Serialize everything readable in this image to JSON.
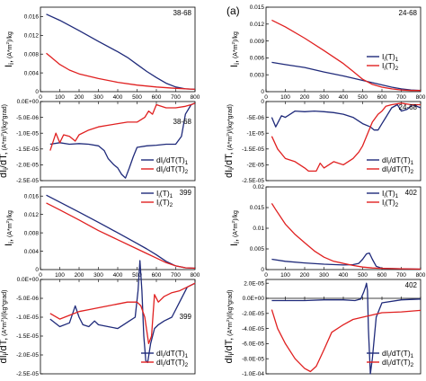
{
  "panel_label": "(a)",
  "colors": {
    "series1": "#1f2a7a",
    "series2": "#e02020",
    "axis": "#000000",
    "grid": "#bbbbbb"
  },
  "chart_data": [
    {
      "id": "p1",
      "type": "line",
      "sample": "38-68",
      "ylabel": "Ii, (A*m²)/kg",
      "ylim": [
        0,
        0.018
      ],
      "yticks": [
        "0",
        "0.004",
        "0.008",
        "0.012",
        "0.016"
      ],
      "ytick_values": [
        0,
        0.004,
        0.008,
        0.012,
        0.016
      ],
      "xlim": [
        0,
        800
      ],
      "xticks": [
        "0",
        "100",
        "200",
        "300",
        "400",
        "500",
        "600",
        "700",
        "800"
      ],
      "legend": [
        "Ii(T)1",
        "Ii(T)2"
      ],
      "legend_pos": "none",
      "series": [
        {
          "x": [
            30,
            100,
            200,
            300,
            400,
            450,
            500,
            550,
            600,
            650,
            700,
            750,
            800
          ],
          "y": [
            0.0165,
            0.0152,
            0.013,
            0.0107,
            0.0085,
            0.0073,
            0.0058,
            0.0043,
            0.003,
            0.0018,
            0.001,
            0.0006,
            0.0005
          ]
        },
        {
          "x": [
            30,
            50,
            100,
            150,
            200,
            300,
            400,
            500,
            600,
            700,
            800
          ],
          "y": [
            0.0082,
            0.0075,
            0.0058,
            0.0046,
            0.0038,
            0.0028,
            0.002,
            0.0014,
            0.001,
            0.0007,
            0.0005
          ]
        }
      ]
    },
    {
      "id": "p2",
      "type": "line",
      "sample": "38-68",
      "ylabel": "dIi/dT, (A*m²)/(kg*grad)",
      "ylim": [
        -2.5e-05,
        0
      ],
      "yticks": [
        "0.0E+00",
        "-5.0E-06",
        "-1.0E-05",
        "-1.5E-05",
        "-2.0E-05",
        "-2.5E-05"
      ],
      "ytick_values": [
        0,
        -5e-06,
        -1e-05,
        -1.5e-05,
        -2e-05,
        -2.5e-05
      ],
      "xlim": [
        0,
        800
      ],
      "xticks": [],
      "legend": [
        "dIi/dT(T)1",
        "dIi/dT(T)2"
      ],
      "legend_pos": "bottom-right",
      "series": [
        {
          "x": [
            50,
            100,
            150,
            200,
            250,
            300,
            330,
            350,
            380,
            400,
            420,
            440,
            460,
            480,
            500,
            550,
            600,
            650,
            700,
            730,
            750,
            780,
            800
          ],
          "y": [
            -1.35e-05,
            -1.3e-05,
            -1.35e-05,
            -1.33e-05,
            -1.35e-05,
            -1.4e-05,
            -1.55e-05,
            -1.8e-05,
            -2e-05,
            -2.1e-05,
            -2.3e-05,
            -2.42e-05,
            -2.1e-05,
            -1.75e-05,
            -1.45e-05,
            -1.4e-05,
            -1.38e-05,
            -1.35e-05,
            -1.35e-05,
            -1.1e-05,
            -4e-06,
            -1e-06,
            -5e-07
          ]
        },
        {
          "x": [
            50,
            80,
            100,
            120,
            150,
            180,
            200,
            250,
            300,
            350,
            400,
            450,
            500,
            540,
            560,
            580,
            600,
            650,
            700,
            750,
            780,
            800
          ],
          "y": [
            -1.55e-05,
            -1e-05,
            -1.3e-05,
            -1.05e-05,
            -1.1e-05,
            -1.25e-05,
            -1.05e-05,
            -9e-06,
            -8e-06,
            -7.5e-06,
            -7e-06,
            -6.5e-06,
            -6.5e-06,
            -5e-06,
            -3e-06,
            -4e-06,
            -1e-06,
            -2e-06,
            -2e-06,
            -1.5e-06,
            -1e-06,
            -5e-07
          ]
        }
      ]
    },
    {
      "id": "p3",
      "type": "line",
      "sample": "399",
      "ylabel": "Ii, (A*m²)/kg",
      "ylim": [
        0,
        0.018
      ],
      "yticks": [
        "0",
        "0.004",
        "0.008",
        "0.012",
        "0.016"
      ],
      "ytick_values": [
        0,
        0.004,
        0.008,
        0.012,
        0.016
      ],
      "xlim": [
        0,
        800
      ],
      "xticks": [
        "0",
        "100",
        "200",
        "300",
        "400",
        "500",
        "600",
        "700",
        "800"
      ],
      "legend": [
        "Ii(T)1",
        "Ii(T)2"
      ],
      "legend_pos": "top-right",
      "series": [
        {
          "x": [
            30,
            100,
            200,
            300,
            400,
            500,
            550,
            600,
            650,
            700,
            750,
            800
          ],
          "y": [
            0.0162,
            0.0147,
            0.0125,
            0.0103,
            0.008,
            0.0057,
            0.0045,
            0.0032,
            0.0018,
            0.0008,
            0.0004,
            0.0003
          ]
        },
        {
          "x": [
            30,
            100,
            200,
            300,
            400,
            500,
            550,
            600,
            650,
            700,
            750,
            800
          ],
          "y": [
            0.0145,
            0.013,
            0.0108,
            0.0085,
            0.0065,
            0.0045,
            0.0035,
            0.0025,
            0.0015,
            0.0008,
            0.0004,
            0.0003
          ]
        }
      ]
    },
    {
      "id": "p4",
      "type": "line",
      "sample": "399",
      "ylabel": "dIi/dT, (A*m²)/(kg*grad)",
      "ylim": [
        -2.5e-05,
        0
      ],
      "yticks": [
        "0.0E+00",
        "-5.0E-06",
        "-1.0E-05",
        "-1.5E-05",
        "-2.0E-05",
        "-2.5E-05"
      ],
      "ytick_values": [
        0,
        -5e-06,
        -1e-05,
        -1.5e-05,
        -2e-05,
        -2.5e-05
      ],
      "xlim": [
        0,
        800
      ],
      "xticks": [],
      "legend": [
        "dIi/dT(T)1",
        "dIi/dT(T)2"
      ],
      "legend_pos": "bottom-right",
      "series": [
        {
          "x": [
            50,
            100,
            150,
            180,
            200,
            220,
            250,
            280,
            300,
            350,
            400,
            430,
            460,
            490,
            505,
            515,
            525,
            535,
            545,
            555,
            570,
            590,
            610,
            640,
            680,
            720,
            760,
            800
          ],
          "y": [
            -1.05e-05,
            -1.25e-05,
            -1.15e-05,
            -7e-06,
            -1e-05,
            -1.2e-05,
            -1.25e-05,
            -1.1e-05,
            -1.2e-05,
            -1.25e-05,
            -1.3e-05,
            -1.2e-05,
            -1.1e-05,
            -1e-05,
            -3e-06,
            5e-06,
            -3e-06,
            -1.5e-05,
            -2.15e-05,
            -2.2e-05,
            -1.7e-05,
            -1.3e-05,
            -1.2e-05,
            -1.1e-05,
            -1e-05,
            -6e-06,
            -2e-06,
            -1e-06
          ]
        },
        {
          "x": [
            50,
            100,
            150,
            200,
            250,
            300,
            350,
            400,
            450,
            500,
            520,
            540,
            560,
            575,
            590,
            610,
            640,
            680,
            720,
            760,
            800
          ],
          "y": [
            -9e-06,
            -1.05e-05,
            -9.5e-06,
            -8.5e-06,
            -8e-06,
            -7.5e-06,
            -7e-06,
            -6.5e-06,
            -6e-06,
            -6e-06,
            -7e-06,
            -1e-05,
            -1.7e-05,
            -1.5e-05,
            -4e-06,
            -6e-06,
            -4.5e-06,
            -3.5e-06,
            -3e-06,
            -2e-06,
            -1e-06
          ]
        }
      ]
    },
    {
      "id": "p5",
      "type": "line",
      "sample": "24-68",
      "ylabel": "Ii, (A*m²)/kg",
      "ylim": [
        0,
        0.015
      ],
      "yticks": [
        "0",
        "0.003",
        "0.006",
        "0.009",
        "0.012",
        "0.015"
      ],
      "ytick_values": [
        0,
        0.003,
        0.006,
        0.009,
        0.012,
        0.015
      ],
      "xlim": [
        0,
        800
      ],
      "xticks": [
        "0",
        "100",
        "200",
        "300",
        "400",
        "500",
        "600",
        "700",
        "800"
      ],
      "legend": [
        "Ii(T)1",
        "Ii(T)2"
      ],
      "legend_pos": "bottom-right",
      "series": [
        {
          "x": [
            30,
            100,
            200,
            300,
            400,
            500,
            550,
            600,
            650,
            700,
            750,
            800
          ],
          "y": [
            0.0052,
            0.0048,
            0.0043,
            0.0035,
            0.0028,
            0.002,
            0.0016,
            0.0012,
            0.0008,
            0.0005,
            0.0003,
            0.0002
          ]
        },
        {
          "x": [
            30,
            100,
            200,
            300,
            400,
            450,
            500,
            550,
            600,
            650,
            700,
            750,
            800
          ],
          "y": [
            0.0127,
            0.0115,
            0.0095,
            0.0073,
            0.005,
            0.0036,
            0.0022,
            0.0013,
            0.0008,
            0.0005,
            0.0003,
            0.0002,
            0.0002
          ]
        }
      ]
    },
    {
      "id": "p6",
      "type": "line",
      "sample": "24-68",
      "ylabel": "dIi/dT, (A*m²)/(kg*grad)",
      "ylim": [
        -2.5e-05,
        0
      ],
      "yticks": [
        "0",
        "-5E-06",
        "-1E-05",
        "-1.5E-05",
        "-2E-05",
        "-2.5E-05"
      ],
      "ytick_values": [
        0,
        -5e-06,
        -1e-05,
        -1.5e-05,
        -2e-05,
        -2.5e-05
      ],
      "xlim": [
        0,
        800
      ],
      "xticks": [],
      "legend": [
        "dIi/dT(T)1",
        "dIi/dT(T)2"
      ],
      "legend_pos": "bottom-right",
      "series": [
        {
          "x": [
            30,
            50,
            80,
            100,
            150,
            200,
            250,
            300,
            350,
            400,
            450,
            500,
            540,
            560,
            580,
            600,
            620,
            650,
            680,
            700,
            730,
            760,
            800
          ],
          "y": [
            -5e-06,
            -8e-06,
            -4.5e-06,
            -5e-06,
            -3e-06,
            -3.2e-06,
            -3e-06,
            -3.2e-06,
            -3.5e-06,
            -4e-06,
            -5e-06,
            -7e-06,
            -8e-06,
            -9e-06,
            -9e-06,
            -7e-06,
            -5e-06,
            -2e-06,
            -1e-06,
            -3e-06,
            -2.5e-06,
            -1e-06,
            -2e-06
          ]
        },
        {
          "x": [
            30,
            60,
            100,
            150,
            200,
            220,
            240,
            260,
            280,
            300,
            350,
            400,
            450,
            480,
            500,
            520,
            550,
            580,
            600,
            620,
            650,
            700,
            750,
            800
          ],
          "y": [
            -1.1e-05,
            -1.5e-05,
            -1.8e-05,
            -1.9e-05,
            -2.1e-05,
            -2.2e-05,
            -2.2e-05,
            -2.2e-05,
            -1.95e-05,
            -2.1e-05,
            -1.9e-05,
            -2e-05,
            -1.8e-05,
            -1.6e-05,
            -1.4e-05,
            -1.1e-05,
            -6.5e-06,
            -4e-06,
            -3e-06,
            -1.5e-06,
            -1e-06,
            -5e-07,
            -1e-06,
            -1e-06
          ]
        }
      ]
    },
    {
      "id": "p7",
      "type": "line",
      "sample": "402",
      "ylabel": "Ii, (A*m²)/kg",
      "ylim": [
        0,
        0.02
      ],
      "yticks": [
        "0",
        "0.005",
        "0.01",
        "0.015",
        "0.02"
      ],
      "ytick_values": [
        0,
        0.005,
        0.01,
        0.015,
        0.02
      ],
      "xlim": [
        0,
        800
      ],
      "xticks": [
        "0",
        "100",
        "200",
        "300",
        "400",
        "500",
        "600",
        "700",
        "800"
      ],
      "legend": [
        "Ii(T)1",
        "Ii(T)2"
      ],
      "legend_pos": "top-right",
      "series": [
        {
          "x": [
            30,
            100,
            200,
            300,
            400,
            450,
            480,
            500,
            520,
            535,
            550,
            570,
            600,
            700,
            800
          ],
          "y": [
            0.0025,
            0.002,
            0.0016,
            0.0013,
            0.0011,
            0.0012,
            0.0015,
            0.0025,
            0.0038,
            0.004,
            0.0025,
            0.0008,
            0.0003,
            0.0002,
            0.0001
          ]
        },
        {
          "x": [
            30,
            50,
            100,
            150,
            200,
            250,
            300,
            350,
            400,
            450,
            500,
            550,
            600,
            700,
            800
          ],
          "y": [
            0.016,
            0.0145,
            0.011,
            0.0085,
            0.0065,
            0.0045,
            0.003,
            0.002,
            0.0015,
            0.001,
            0.0006,
            0.0004,
            0.0003,
            0.0002,
            0.0001
          ]
        }
      ]
    },
    {
      "id": "p8",
      "type": "line",
      "sample": "402",
      "ylabel": "dIi/dT, (A*m²)/(kg*grad)",
      "ylim": [
        -0.0001,
        2.5e-05
      ],
      "yticks": [
        "2.0E-05",
        "0.0E+00",
        "-2.0E-05",
        "-4.0E-05",
        "-6.0E-05",
        "-8.0E-05",
        "-1.0E-04"
      ],
      "ytick_values": [
        2e-05,
        0,
        -2e-05,
        -4e-05,
        -6e-05,
        -8e-05,
        -0.0001
      ],
      "xlim": [
        0,
        800
      ],
      "xticks": [],
      "legend": [
        "dIi/dT(T)1",
        "dIi/dT(T)2"
      ],
      "legend_pos": "bottom-right",
      "series": [
        {
          "x": [
            30,
            100,
            200,
            300,
            400,
            460,
            490,
            505,
            515,
            520,
            525,
            530,
            535,
            540,
            550,
            570,
            600,
            700,
            800
          ],
          "y": [
            -3e-06,
            -3e-06,
            -3e-06,
            -2e-06,
            -2e-06,
            -3e-06,
            -1e-06,
            8e-06,
            1.5e-05,
            2e-05,
            1e-05,
            -4e-05,
            -7e-05,
            -0.0001,
            -8e-05,
            -2.5e-05,
            -6e-06,
            -2e-06,
            -1e-06
          ]
        },
        {
          "x": [
            30,
            60,
            100,
            150,
            200,
            230,
            260,
            300,
            340,
            400,
            450,
            500,
            550,
            600,
            700,
            800
          ],
          "y": [
            -1.5e-05,
            -4e-05,
            -6e-05,
            -8e-05,
            -9.3e-05,
            -9.7e-05,
            -9e-05,
            -6.8e-05,
            -4.5e-05,
            -3.5e-05,
            -2.8e-05,
            -2.5e-05,
            -2.2e-05,
            -1.9e-05,
            -1.8e-05,
            -1.6e-05
          ]
        }
      ]
    }
  ]
}
